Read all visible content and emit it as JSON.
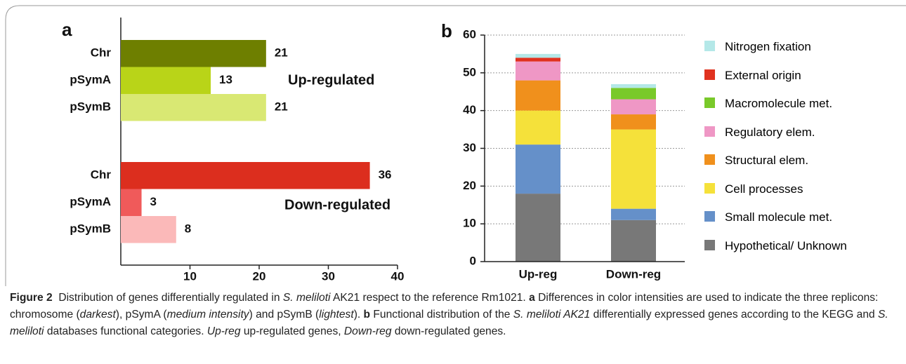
{
  "charts": [
    {
      "type": "bar",
      "orientation": "horizontal",
      "panel_label": "a",
      "categories": [
        "Chr",
        "pSymA",
        "pSymB",
        "Chr",
        "pSymA",
        "pSymB"
      ],
      "values": [
        21,
        13,
        21,
        36,
        3,
        8
      ],
      "colors": [
        "#6e7f00",
        "#b9d418",
        "#d9e873",
        "#dc2e1e",
        "#f05a5a",
        "#fbb9b9"
      ],
      "annotations": [
        "Up-regulated",
        "Down-regulated"
      ],
      "xlim": [
        0,
        40
      ],
      "xticks": [
        10,
        20,
        30,
        40
      ]
    },
    {
      "type": "bar",
      "stacked": true,
      "panel_label": "b",
      "categories": [
        "Up-reg",
        "Down-reg"
      ],
      "series": [
        {
          "name": "Hypothetical/ Unknown",
          "color": "#787878",
          "values": [
            18,
            11
          ]
        },
        {
          "name": "Small molecule met.",
          "color": "#6590c9",
          "values": [
            13,
            3
          ]
        },
        {
          "name": "Cell processes",
          "color": "#f5e13a",
          "values": [
            9,
            21
          ]
        },
        {
          "name": "Structural elem.",
          "color": "#f0901c",
          "values": [
            8,
            4
          ]
        },
        {
          "name": "Regulatory elem.",
          "color": "#ef97c5",
          "values": [
            5,
            4
          ]
        },
        {
          "name": "Macromolecule met.",
          "color": "#79c92a",
          "values": [
            0,
            3
          ]
        },
        {
          "name": "External origin",
          "color": "#e0321f",
          "values": [
            1,
            0
          ]
        },
        {
          "name": "Nitrogen fixation",
          "color": "#b4e8e8",
          "values": [
            1,
            1
          ]
        }
      ],
      "ylim": [
        0,
        60
      ],
      "yticks": [
        0,
        10,
        20,
        30,
        40,
        50,
        60
      ],
      "grid": true
    }
  ],
  "caption": {
    "runs": [
      {
        "text": "Figure 2",
        "style": "bold"
      },
      {
        "text": "  Distribution of genes differentially regulated in ",
        "style": "plain"
      },
      {
        "text": "S. meliloti",
        "style": "italic"
      },
      {
        "text": " AK21 respect to the reference Rm1021. ",
        "style": "plain"
      },
      {
        "text": "a",
        "style": "bold"
      },
      {
        "text": " Differences in color intensities are used to indicate the three replicons: chromosome (",
        "style": "plain"
      },
      {
        "text": "darkest",
        "style": "italic"
      },
      {
        "text": "), pSymA (",
        "style": "plain"
      },
      {
        "text": "medium intensity",
        "style": "italic"
      },
      {
        "text": ") and pSymB (",
        "style": "plain"
      },
      {
        "text": "lightest",
        "style": "italic"
      },
      {
        "text": "). ",
        "style": "plain"
      },
      {
        "text": "b",
        "style": "bold"
      },
      {
        "text": " Functional distribution of the ",
        "style": "plain"
      },
      {
        "text": "S. meliloti AK21",
        "style": "italic"
      },
      {
        "text": " differentially expressed genes according to the KEGG and ",
        "style": "plain"
      },
      {
        "text": "S. meliloti",
        "style": "italic"
      },
      {
        "text": " databases functional categories. ",
        "style": "plain"
      },
      {
        "text": "Up-reg",
        "style": "italic"
      },
      {
        "text": " up-regulated genes, ",
        "style": "plain"
      },
      {
        "text": "Down-reg",
        "style": "italic"
      },
      {
        "text": " down-regulated genes.",
        "style": "plain"
      }
    ]
  }
}
